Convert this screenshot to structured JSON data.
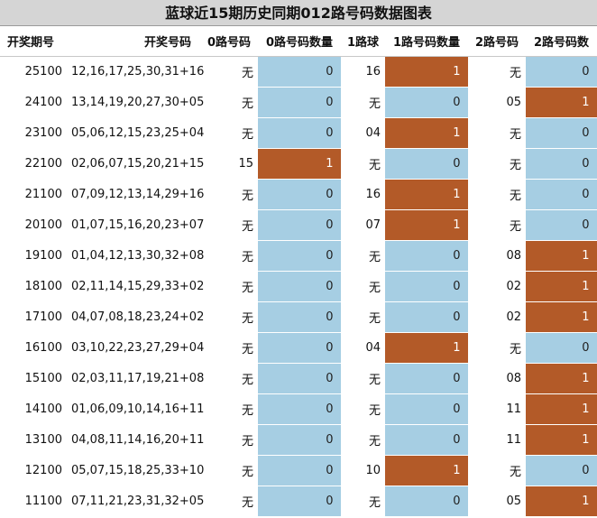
{
  "title": "蓝球近15期历史同期012路号码数据图表",
  "headers": [
    "开奖期号",
    "开奖号码",
    "0路号码",
    "0路号码数量",
    "1路球",
    "1路号码数量",
    "2路号码",
    "2路号码数"
  ],
  "colors": {
    "zero_count": "#a6cee3",
    "one_count": "#b35a28"
  },
  "rows": [
    {
      "issue": "25100",
      "numbers": "12,16,17,25,30,31+16",
      "r0": "无",
      "c0": "0",
      "r1": "16",
      "c1": "1",
      "r2": "无",
      "c2": "0"
    },
    {
      "issue": "24100",
      "numbers": "13,14,19,20,27,30+05",
      "r0": "无",
      "c0": "0",
      "r1": "无",
      "c1": "0",
      "r2": "05",
      "c2": "1"
    },
    {
      "issue": "23100",
      "numbers": "05,06,12,15,23,25+04",
      "r0": "无",
      "c0": "0",
      "r1": "04",
      "c1": "1",
      "r2": "无",
      "c2": "0"
    },
    {
      "issue": "22100",
      "numbers": "02,06,07,15,20,21+15",
      "r0": "15",
      "c0": "1",
      "r1": "无",
      "c1": "0",
      "r2": "无",
      "c2": "0"
    },
    {
      "issue": "21100",
      "numbers": "07,09,12,13,14,29+16",
      "r0": "无",
      "c0": "0",
      "r1": "16",
      "c1": "1",
      "r2": "无",
      "c2": "0"
    },
    {
      "issue": "20100",
      "numbers": "01,07,15,16,20,23+07",
      "r0": "无",
      "c0": "0",
      "r1": "07",
      "c1": "1",
      "r2": "无",
      "c2": "0"
    },
    {
      "issue": "19100",
      "numbers": "01,04,12,13,30,32+08",
      "r0": "无",
      "c0": "0",
      "r1": "无",
      "c1": "0",
      "r2": "08",
      "c2": "1"
    },
    {
      "issue": "18100",
      "numbers": "02,11,14,15,29,33+02",
      "r0": "无",
      "c0": "0",
      "r1": "无",
      "c1": "0",
      "r2": "02",
      "c2": "1"
    },
    {
      "issue": "17100",
      "numbers": "04,07,08,18,23,24+02",
      "r0": "无",
      "c0": "0",
      "r1": "无",
      "c1": "0",
      "r2": "02",
      "c2": "1"
    },
    {
      "issue": "16100",
      "numbers": "03,10,22,23,27,29+04",
      "r0": "无",
      "c0": "0",
      "r1": "04",
      "c1": "1",
      "r2": "无",
      "c2": "0"
    },
    {
      "issue": "15100",
      "numbers": "02,03,11,17,19,21+08",
      "r0": "无",
      "c0": "0",
      "r1": "无",
      "c1": "0",
      "r2": "08",
      "c2": "1"
    },
    {
      "issue": "14100",
      "numbers": "01,06,09,10,14,16+11",
      "r0": "无",
      "c0": "0",
      "r1": "无",
      "c1": "0",
      "r2": "11",
      "c2": "1"
    },
    {
      "issue": "13100",
      "numbers": "04,08,11,14,16,20+11",
      "r0": "无",
      "c0": "0",
      "r1": "无",
      "c1": "0",
      "r2": "11",
      "c2": "1"
    },
    {
      "issue": "12100",
      "numbers": "05,07,15,18,25,33+10",
      "r0": "无",
      "c0": "0",
      "r1": "10",
      "c1": "1",
      "r2": "无",
      "c2": "0"
    },
    {
      "issue": "11100",
      "numbers": "07,11,21,23,31,32+05",
      "r0": "无",
      "c0": "0",
      "r1": "无",
      "c1": "0",
      "r2": "05",
      "c2": "1"
    }
  ]
}
